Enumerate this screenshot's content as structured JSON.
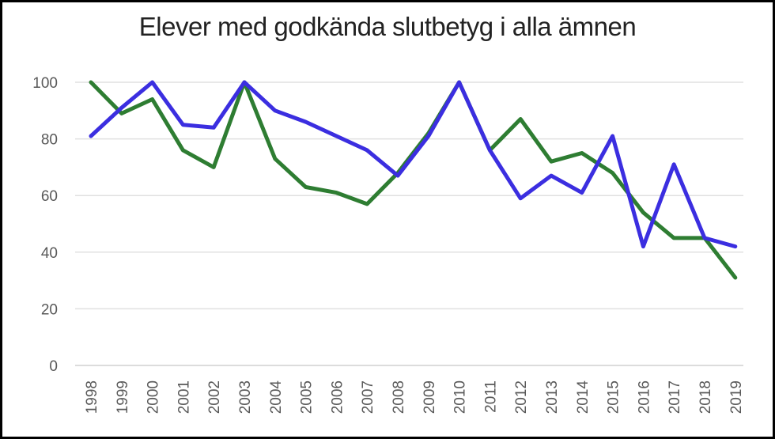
{
  "chart_data": {
    "type": "line",
    "title": "Elever med godkända slutbetyg i alla ämnen",
    "xlabel": "",
    "ylabel": "",
    "categories": [
      "1998",
      "1999",
      "2000",
      "2001",
      "2002",
      "2003",
      "2004",
      "2005",
      "2006",
      "2007",
      "2008",
      "2009",
      "2010",
      "2011",
      "2012",
      "2013",
      "2014",
      "2015",
      "2016",
      "2017",
      "2018",
      "2019"
    ],
    "ylim": [
      0,
      100
    ],
    "yticks": [
      0,
      20,
      40,
      60,
      80,
      100
    ],
    "grid": true,
    "legend": "none",
    "series": [
      {
        "color": "#2e7d32",
        "values": [
          100,
          89,
          94,
          76,
          70,
          100,
          73,
          63,
          61,
          57,
          68,
          82,
          100,
          76,
          87,
          72,
          75,
          68,
          54,
          45,
          45,
          31
        ]
      },
      {
        "color": "#3b2ee0",
        "values": [
          81,
          91,
          100,
          85,
          84,
          100,
          90,
          86,
          81,
          76,
          67,
          81,
          100,
          76,
          59,
          67,
          61,
          81,
          42,
          71,
          45,
          42
        ]
      }
    ]
  }
}
